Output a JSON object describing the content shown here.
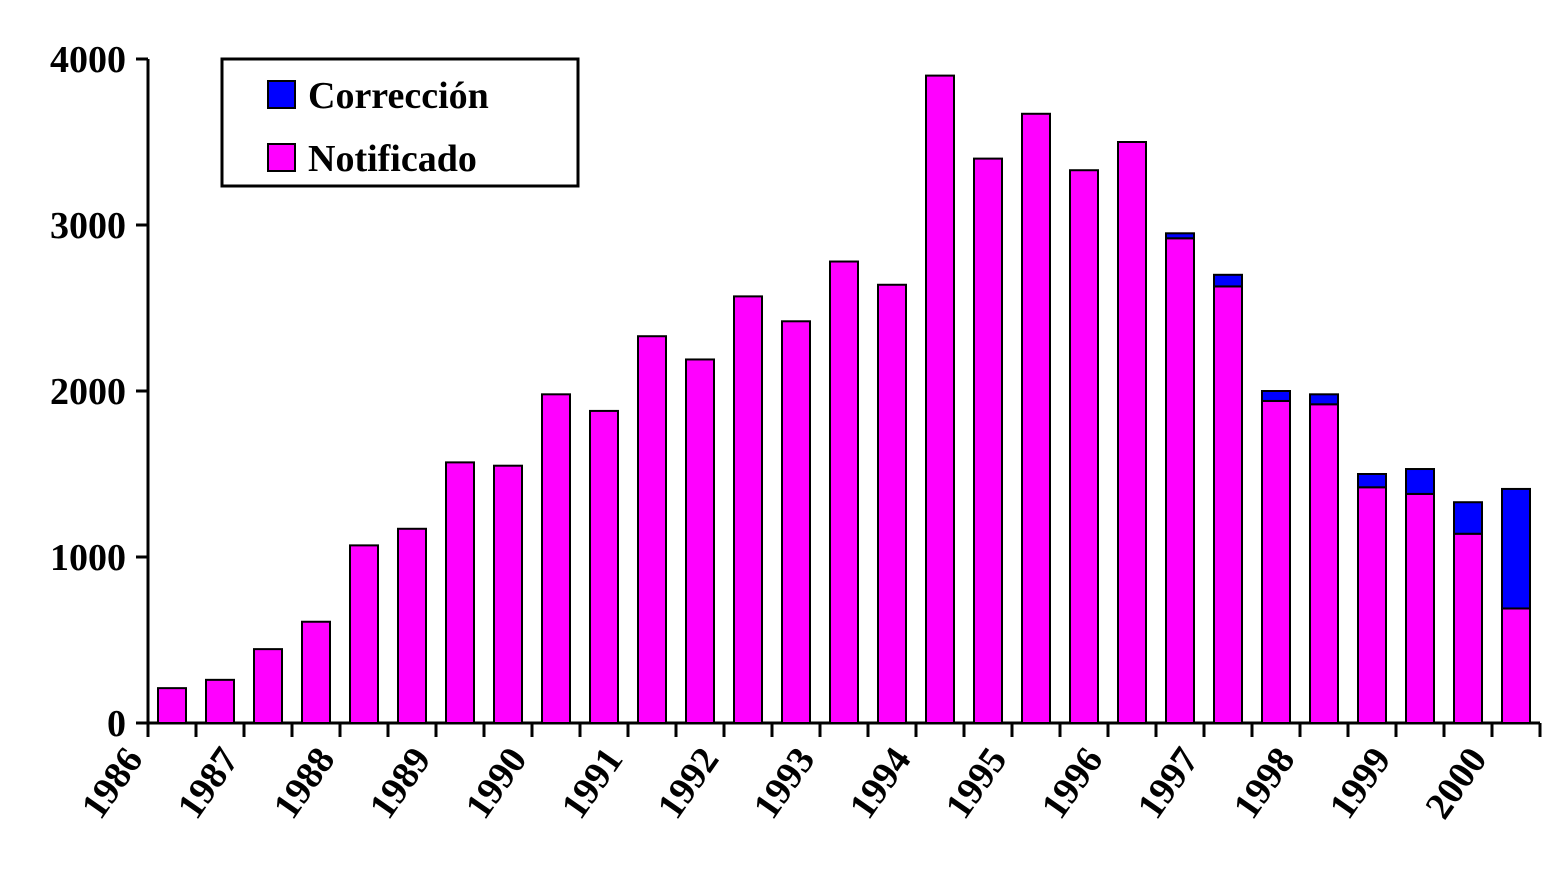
{
  "chart_data": {
    "type": "bar",
    "stacked": true,
    "categories": [
      "1986",
      null,
      "1987",
      null,
      "1988",
      null,
      "1989",
      null,
      "1990",
      null,
      "1991",
      null,
      "1992",
      null,
      "1993",
      null,
      "1994",
      null,
      "1995",
      null,
      "1996",
      null,
      "1997",
      null,
      "1998",
      null,
      "1999",
      null,
      "2000"
    ],
    "series": [
      {
        "name": "Notificado",
        "color": "#ff00ff",
        "values": [
          210,
          260,
          445,
          610,
          1070,
          1170,
          1570,
          1550,
          1980,
          1880,
          2330,
          2190,
          2570,
          2420,
          2780,
          2640,
          3900,
          3400,
          3670,
          3330,
          3500,
          2920,
          2630,
          1940,
          1920,
          1420,
          1380,
          1140,
          690
        ]
      },
      {
        "name": "Corrección",
        "color": "#0000ff",
        "values": [
          0,
          0,
          0,
          0,
          0,
          0,
          0,
          0,
          0,
          0,
          0,
          0,
          0,
          0,
          0,
          0,
          0,
          0,
          0,
          0,
          0,
          30,
          70,
          60,
          60,
          80,
          150,
          190,
          720
        ]
      }
    ],
    "ylim": [
      0,
      4000
    ],
    "yticks": [
      0,
      1000,
      2000,
      3000,
      4000
    ],
    "legend": "upper left"
  }
}
